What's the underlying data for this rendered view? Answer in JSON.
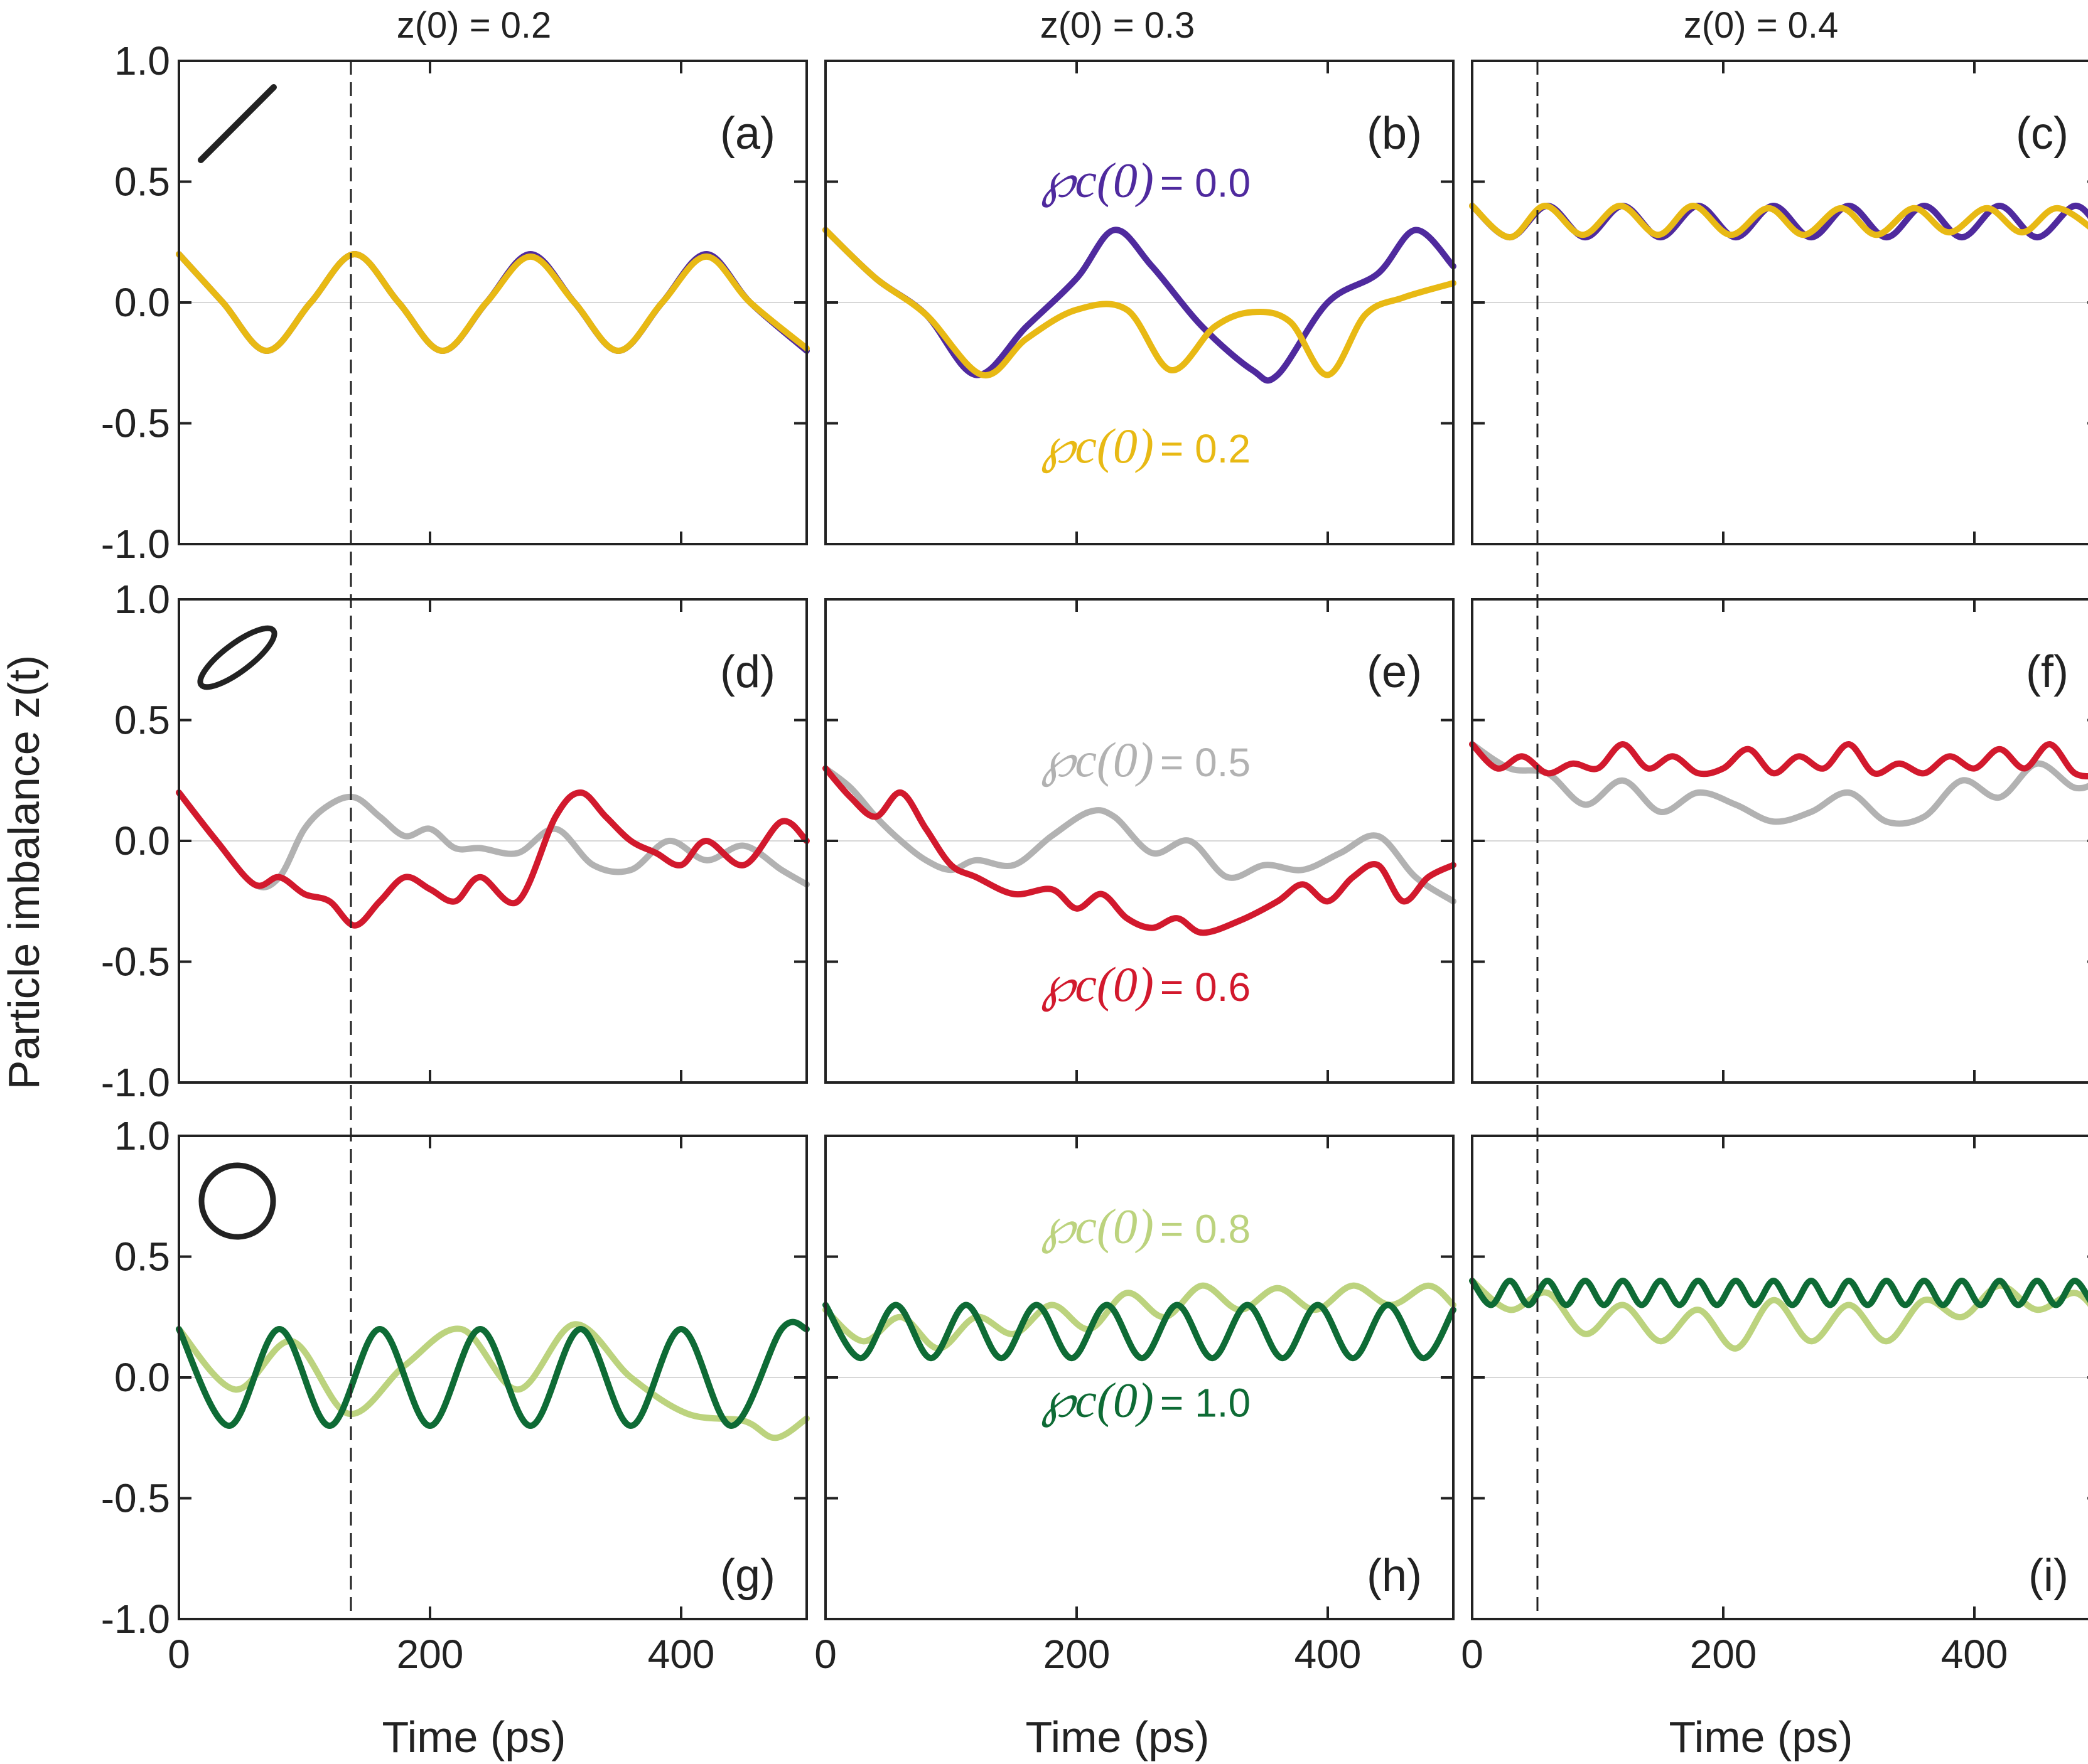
{
  "figure": {
    "column_titles": [
      "z(0) = 0.2",
      "z(0) = 0.3",
      "z(0) = 0.4"
    ],
    "ylabel": "Particle imbalance z(t)",
    "xlabel": "Time (ps)"
  },
  "colors": {
    "purple": "#4f2a9e",
    "yellow": "#e8b914",
    "red": "#d2192d",
    "gray": "#b2b2b2",
    "light_green": "#bcd37e",
    "dark_green": "#0e6b35",
    "axis": "#222222",
    "zero_line": "#d7d7d7"
  },
  "row_icons": [
    "line-icon",
    "ellipse-icon",
    "circle-icon"
  ],
  "chart_data": [
    {
      "panel": "(a)",
      "type": "line",
      "xlim": [
        0,
        500
      ],
      "ylim": [
        -1.0,
        1.0
      ],
      "xticks": [
        "0",
        "200",
        "400"
      ],
      "yticks": [
        "-1.0",
        "-0.5",
        "0.0",
        "0.5",
        "1.0"
      ],
      "series": [
        {
          "color": "purple",
          "x": [
            0,
            35,
            70,
            105,
            140,
            175,
            210,
            245,
            280,
            315,
            350,
            385,
            420,
            455,
            500
          ],
          "y": [
            0.2,
            0.0,
            -0.2,
            0.0,
            0.2,
            0.0,
            -0.2,
            0.0,
            0.2,
            0.0,
            -0.2,
            0.0,
            0.2,
            0.0,
            -0.2
          ]
        },
        {
          "color": "yellow",
          "x": [
            0,
            35,
            70,
            105,
            140,
            175,
            210,
            245,
            280,
            315,
            350,
            385,
            420,
            455,
            500
          ],
          "y": [
            0.2,
            0.0,
            -0.2,
            0.0,
            0.2,
            0.0,
            -0.2,
            0.0,
            0.19,
            0.0,
            -0.2,
            0.0,
            0.19,
            0.0,
            -0.19
          ]
        }
      ]
    },
    {
      "panel": "(b)",
      "type": "line",
      "xlim": [
        0,
        500
      ],
      "ylim": [
        -1.0,
        1.0
      ],
      "xticks": [
        "0",
        "200",
        "400"
      ],
      "yticks": [
        "-1.0",
        "-0.5",
        "0.0",
        "0.5",
        "1.0"
      ],
      "series": [
        {
          "name": "℘c(0) = 0.0",
          "color": "purple",
          "x": [
            0,
            40,
            80,
            120,
            160,
            200,
            230,
            260,
            300,
            340,
            360,
            400,
            440,
            470,
            500
          ],
          "y": [
            0.3,
            0.1,
            -0.05,
            -0.3,
            -0.1,
            0.1,
            0.3,
            0.15,
            -0.1,
            -0.28,
            -0.3,
            0.0,
            0.12,
            0.3,
            0.15
          ]
        },
        {
          "name": "℘c(0) = 0.2",
          "color": "yellow",
          "x": [
            0,
            40,
            80,
            125,
            160,
            200,
            240,
            275,
            310,
            340,
            370,
            400,
            430,
            460,
            500
          ],
          "y": [
            0.3,
            0.1,
            -0.05,
            -0.3,
            -0.15,
            -0.03,
            -0.03,
            -0.28,
            -0.1,
            -0.04,
            -0.08,
            -0.3,
            -0.05,
            0.02,
            0.08
          ]
        }
      ]
    },
    {
      "panel": "(c)",
      "type": "line",
      "xlim": [
        0,
        500
      ],
      "ylim": [
        -1.0,
        1.0
      ],
      "xticks": [
        "0",
        "200",
        "400"
      ],
      "yticks": [
        "-1.0",
        "-0.5",
        "0.0",
        "0.5",
        "1.0"
      ],
      "series": [
        {
          "color": "purple",
          "x": [
            0,
            30,
            60,
            90,
            120,
            150,
            180,
            210,
            240,
            270,
            300,
            330,
            360,
            390,
            420,
            450,
            480,
            500
          ],
          "y": [
            0.4,
            0.27,
            0.4,
            0.27,
            0.4,
            0.27,
            0.4,
            0.27,
            0.4,
            0.27,
            0.4,
            0.27,
            0.4,
            0.27,
            0.4,
            0.27,
            0.4,
            0.3
          ]
        },
        {
          "color": "yellow",
          "x": [
            0,
            30,
            58,
            88,
            118,
            148,
            176,
            206,
            236,
            264,
            294,
            322,
            352,
            380,
            410,
            438,
            466,
            500
          ],
          "y": [
            0.4,
            0.27,
            0.4,
            0.28,
            0.4,
            0.28,
            0.4,
            0.28,
            0.39,
            0.28,
            0.39,
            0.28,
            0.39,
            0.29,
            0.39,
            0.29,
            0.39,
            0.28
          ]
        }
      ]
    },
    {
      "panel": "(d)",
      "type": "line",
      "xlim": [
        0,
        500
      ],
      "ylim": [
        -1.0,
        1.0
      ],
      "xticks": [
        "0",
        "200",
        "400"
      ],
      "yticks": [
        "-1.0",
        "-0.5",
        "0.0",
        "0.5",
        "1.0"
      ],
      "series": [
        {
          "color": "gray",
          "x": [
            0,
            30,
            60,
            80,
            100,
            120,
            140,
            160,
            180,
            200,
            220,
            240,
            270,
            300,
            330,
            360,
            390,
            420,
            450,
            480,
            500
          ],
          "y": [
            0.2,
            0.0,
            -0.18,
            -0.15,
            0.05,
            0.15,
            0.18,
            0.1,
            0.02,
            0.05,
            -0.03,
            -0.03,
            -0.05,
            0.05,
            -0.1,
            -0.12,
            0.0,
            -0.08,
            -0.02,
            -0.12,
            -0.18
          ]
        },
        {
          "color": "red",
          "x": [
            0,
            30,
            60,
            80,
            100,
            120,
            140,
            160,
            180,
            200,
            220,
            240,
            270,
            300,
            320,
            340,
            360,
            380,
            400,
            420,
            450,
            480,
            500
          ],
          "y": [
            0.2,
            0.0,
            -0.18,
            -0.15,
            -0.22,
            -0.25,
            -0.35,
            -0.25,
            -0.15,
            -0.2,
            -0.25,
            -0.15,
            -0.25,
            0.1,
            0.2,
            0.1,
            0.0,
            -0.05,
            -0.1,
            0.0,
            -0.1,
            0.08,
            0.0
          ]
        }
      ]
    },
    {
      "panel": "(e)",
      "type": "line",
      "xlim": [
        0,
        500
      ],
      "ylim": [
        -1.0,
        1.0
      ],
      "xticks": [
        "0",
        "200",
        "400"
      ],
      "yticks": [
        "-1.0",
        "-0.5",
        "0.0",
        "0.5",
        "1.0"
      ],
      "series": [
        {
          "name": "℘c(0) = 0.5",
          "color": "gray",
          "x": [
            0,
            20,
            40,
            60,
            80,
            100,
            120,
            150,
            180,
            210,
            230,
            260,
            290,
            320,
            350,
            380,
            410,
            440,
            470,
            500
          ],
          "y": [
            0.3,
            0.22,
            0.1,
            0.0,
            -0.08,
            -0.12,
            -0.08,
            -0.1,
            0.02,
            0.12,
            0.1,
            -0.05,
            0.0,
            -0.15,
            -0.1,
            -0.12,
            -0.05,
            0.02,
            -0.15,
            -0.25
          ]
        },
        {
          "name": "℘c(0) = 0.6",
          "color": "red",
          "x": [
            0,
            20,
            40,
            60,
            80,
            100,
            120,
            150,
            180,
            200,
            220,
            240,
            260,
            280,
            300,
            330,
            360,
            380,
            400,
            420,
            440,
            460,
            480,
            500
          ],
          "y": [
            0.3,
            0.18,
            0.1,
            0.2,
            0.05,
            -0.1,
            -0.15,
            -0.22,
            -0.2,
            -0.28,
            -0.22,
            -0.32,
            -0.36,
            -0.32,
            -0.38,
            -0.33,
            -0.25,
            -0.18,
            -0.25,
            -0.15,
            -0.1,
            -0.25,
            -0.15,
            -0.1
          ]
        }
      ]
    },
    {
      "panel": "(f)",
      "type": "line",
      "xlim": [
        0,
        500
      ],
      "ylim": [
        -1.0,
        1.0
      ],
      "xticks": [
        "0",
        "200",
        "400"
      ],
      "yticks": [
        "-1.0",
        "-0.5",
        "0.0",
        "0.5",
        "1.0"
      ],
      "series": [
        {
          "color": "gray",
          "x": [
            0,
            30,
            60,
            90,
            120,
            150,
            180,
            210,
            240,
            270,
            300,
            330,
            360,
            390,
            420,
            450,
            480,
            500
          ],
          "y": [
            0.4,
            0.3,
            0.28,
            0.15,
            0.25,
            0.12,
            0.2,
            0.15,
            0.08,
            0.12,
            0.2,
            0.08,
            0.1,
            0.25,
            0.18,
            0.32,
            0.22,
            0.25
          ]
        },
        {
          "color": "red",
          "x": [
            0,
            20,
            40,
            60,
            80,
            100,
            120,
            140,
            160,
            180,
            200,
            220,
            240,
            260,
            280,
            300,
            320,
            340,
            360,
            380,
            400,
            420,
            440,
            460,
            480,
            500
          ],
          "y": [
            0.4,
            0.3,
            0.35,
            0.28,
            0.32,
            0.3,
            0.4,
            0.3,
            0.35,
            0.28,
            0.3,
            0.38,
            0.28,
            0.35,
            0.3,
            0.4,
            0.28,
            0.32,
            0.28,
            0.35,
            0.3,
            0.38,
            0.3,
            0.4,
            0.28,
            0.27
          ]
        }
      ]
    },
    {
      "panel": "(g)",
      "type": "line",
      "xlim": [
        0,
        500
      ],
      "ylim": [
        -1.0,
        1.0
      ],
      "xticks": [
        "0",
        "200",
        "400"
      ],
      "yticks": [
        "-1.0",
        "-0.5",
        "0.0",
        "0.5",
        "1.0"
      ],
      "series": [
        {
          "color": "light_green",
          "x": [
            0,
            45,
            90,
            135,
            180,
            225,
            270,
            315,
            360,
            405,
            450,
            475,
            500
          ],
          "y": [
            0.2,
            -0.05,
            0.15,
            -0.15,
            0.05,
            0.2,
            -0.05,
            0.22,
            0.0,
            -0.15,
            -0.18,
            -0.25,
            -0.17
          ]
        },
        {
          "color": "dark_green",
          "x": [
            0,
            40,
            80,
            120,
            160,
            200,
            240,
            280,
            320,
            360,
            400,
            440,
            480,
            500
          ],
          "y": [
            0.2,
            -0.2,
            0.2,
            -0.2,
            0.2,
            -0.2,
            0.2,
            -0.2,
            0.2,
            -0.2,
            0.2,
            -0.2,
            0.2,
            0.2
          ]
        }
      ]
    },
    {
      "panel": "(h)",
      "type": "line",
      "xlim": [
        0,
        500
      ],
      "ylim": [
        -1.0,
        1.0
      ],
      "xticks": [
        "0",
        "200",
        "400"
      ],
      "yticks": [
        "-1.0",
        "-0.5",
        "0.0",
        "0.5",
        "1.0"
      ],
      "series": [
        {
          "name": "℘c(0) = 0.8",
          "color": "light_green",
          "x": [
            0,
            30,
            60,
            90,
            120,
            150,
            180,
            210,
            240,
            270,
            300,
            330,
            360,
            390,
            420,
            450,
            480,
            500
          ],
          "y": [
            0.28,
            0.15,
            0.25,
            0.12,
            0.25,
            0.18,
            0.3,
            0.2,
            0.35,
            0.25,
            0.38,
            0.28,
            0.37,
            0.28,
            0.38,
            0.3,
            0.38,
            0.3
          ]
        },
        {
          "name": "℘c(0) = 1.0",
          "color": "dark_green",
          "x": [
            0,
            28,
            56,
            84,
            112,
            140,
            168,
            196,
            224,
            252,
            280,
            308,
            336,
            364,
            392,
            420,
            448,
            476,
            500
          ],
          "y": [
            0.3,
            0.08,
            0.3,
            0.08,
            0.3,
            0.08,
            0.3,
            0.08,
            0.3,
            0.08,
            0.3,
            0.08,
            0.3,
            0.08,
            0.3,
            0.08,
            0.3,
            0.08,
            0.28
          ]
        }
      ]
    },
    {
      "panel": "(i)",
      "type": "line",
      "xlim": [
        0,
        500
      ],
      "ylim": [
        -1.0,
        1.0
      ],
      "xticks": [
        "0",
        "200",
        "400"
      ],
      "yticks": [
        "-1.0",
        "-0.5",
        "0.0",
        "0.5",
        "1.0"
      ],
      "series": [
        {
          "color": "light_green",
          "x": [
            0,
            30,
            60,
            90,
            120,
            150,
            180,
            210,
            240,
            270,
            300,
            330,
            360,
            390,
            420,
            450,
            480,
            500
          ],
          "y": [
            0.4,
            0.28,
            0.35,
            0.18,
            0.3,
            0.15,
            0.28,
            0.12,
            0.32,
            0.15,
            0.3,
            0.15,
            0.32,
            0.25,
            0.38,
            0.28,
            0.35,
            0.25
          ]
        },
        {
          "color": "dark_green",
          "x": [
            0,
            15,
            30,
            45,
            60,
            75,
            90,
            105,
            120,
            135,
            150,
            165,
            180,
            195,
            210,
            225,
            240,
            255,
            270,
            285,
            300,
            315,
            330,
            345,
            360,
            375,
            390,
            405,
            420,
            435,
            450,
            465,
            480,
            495,
            500
          ],
          "y": [
            0.4,
            0.3,
            0.4,
            0.3,
            0.4,
            0.3,
            0.4,
            0.3,
            0.4,
            0.3,
            0.4,
            0.3,
            0.4,
            0.3,
            0.4,
            0.3,
            0.4,
            0.3,
            0.4,
            0.3,
            0.4,
            0.3,
            0.4,
            0.3,
            0.4,
            0.3,
            0.4,
            0.3,
            0.4,
            0.3,
            0.4,
            0.3,
            0.4,
            0.3,
            0.33
          ]
        }
      ]
    }
  ],
  "annotations": [
    {
      "panel": 1,
      "symbol": "℘c(0)",
      "value": "= 0.0",
      "color": "purple",
      "x": 250,
      "y": 0.5
    },
    {
      "panel": 1,
      "symbol": "℘c(0)",
      "value": "= 0.2",
      "color": "yellow",
      "x": 250,
      "y": -0.6
    },
    {
      "panel": 4,
      "symbol": "℘c(0)",
      "value": "= 0.5",
      "color": "gray",
      "x": 250,
      "y": 0.33
    },
    {
      "panel": 4,
      "symbol": "℘c(0)",
      "value": "= 0.6",
      "color": "red",
      "x": 250,
      "y": -0.6
    },
    {
      "panel": 7,
      "symbol": "℘c(0)",
      "value": "= 0.8",
      "color": "light_green",
      "x": 250,
      "y": 0.62
    },
    {
      "panel": 7,
      "symbol": "℘c(0)",
      "value": "= 1.0",
      "color": "dark_green",
      "x": 250,
      "y": -0.1
    }
  ],
  "vertical_guides": [
    {
      "column": 0,
      "x": 137
    },
    {
      "column": 2,
      "x": 52
    }
  ]
}
